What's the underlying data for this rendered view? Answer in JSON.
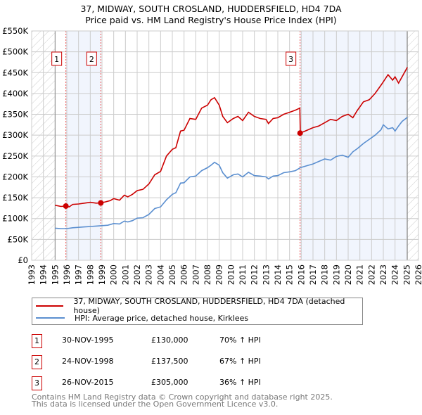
{
  "chart_data": {
    "type": "line",
    "title": "37, MIDWAY, SOUTH CROSLAND, HUDDERSFIELD, HD4 7DA",
    "subtitle": "Price paid vs. HM Land Registry's House Price Index (HPI)",
    "xlim": [
      1993,
      2026
    ],
    "ylim": [
      0,
      550000
    ],
    "y_ticks": [
      {
        "v": 0,
        "label": "£0"
      },
      {
        "v": 50000,
        "label": "£50K"
      },
      {
        "v": 100000,
        "label": "£100K"
      },
      {
        "v": 150000,
        "label": "£150K"
      },
      {
        "v": 200000,
        "label": "£200K"
      },
      {
        "v": 250000,
        "label": "£250K"
      },
      {
        "v": 300000,
        "label": "£300K"
      },
      {
        "v": 350000,
        "label": "£350K"
      },
      {
        "v": 400000,
        "label": "£400K"
      },
      {
        "v": 450000,
        "label": "£450K"
      },
      {
        "v": 500000,
        "label": "£500K"
      },
      {
        "v": 550000,
        "label": "£550K"
      }
    ],
    "x_ticks": [
      "1993",
      "1994",
      "1995",
      "1996",
      "1997",
      "1998",
      "1999",
      "2000",
      "2001",
      "2002",
      "2003",
      "2004",
      "2005",
      "2006",
      "2007",
      "2008",
      "2009",
      "2010",
      "2011",
      "2012",
      "2013",
      "2014",
      "2015",
      "2016",
      "2017",
      "2018",
      "2019",
      "2020",
      "2021",
      "2022",
      "2023",
      "2024",
      "2025",
      "2026"
    ],
    "grid": true,
    "data_range": [
      1995.0,
      2025.05
    ],
    "shaded_periods": [
      [
        1995.92,
        1998.9
      ],
      [
        2015.9,
        2025.05
      ]
    ],
    "series": [
      {
        "name": "37, MIDWAY, SOUTH CROSLAND, HUDDERSFIELD, HD4 7DA (detached house)",
        "color": "#cc0000",
        "x": [
          1995.0,
          1995.5,
          1995.92,
          1996.2,
          1996.5,
          1997,
          1997.5,
          1998,
          1998.5,
          1998.9,
          1999.3,
          1999.7,
          2000,
          2000.5,
          2000.9,
          2001.2,
          2001.6,
          2002,
          2002.5,
          2003,
          2003.5,
          2004,
          2004.5,
          2005,
          2005.3,
          2005.7,
          2006,
          2006.5,
          2007,
          2007.5,
          2008,
          2008.3,
          2008.6,
          2009,
          2009.3,
          2009.7,
          2010.2,
          2010.6,
          2011,
          2011.5,
          2012,
          2012.5,
          2013,
          2013.2,
          2013.6,
          2014,
          2014.5,
          2015,
          2015.5,
          2015.88,
          2015.92,
          2016.5,
          2017,
          2017.5,
          2018,
          2018.5,
          2019,
          2019.5,
          2020,
          2020.4,
          2020.8,
          2021.3,
          2021.8,
          2022.3,
          2022.8,
          2023,
          2023.4,
          2023.8,
          2024,
          2024.3,
          2024.6,
          2025.05
        ],
        "y": [
          132000,
          129000,
          130000,
          128000,
          134000,
          135000,
          137000,
          139000,
          137000,
          137500,
          140000,
          143000,
          148000,
          144000,
          156000,
          152000,
          158000,
          167000,
          170000,
          183000,
          205000,
          213000,
          250000,
          266000,
          270000,
          310000,
          312000,
          340000,
          338000,
          365000,
          372000,
          385000,
          390000,
          372000,
          345000,
          330000,
          340000,
          345000,
          335000,
          355000,
          345000,
          340000,
          338000,
          328000,
          340000,
          342000,
          350000,
          355000,
          360000,
          365000,
          305000,
          312000,
          318000,
          322000,
          330000,
          338000,
          335000,
          345000,
          350000,
          342000,
          360000,
          380000,
          385000,
          400000,
          420000,
          428000,
          445000,
          432000,
          440000,
          425000,
          440000,
          463000
        ]
      },
      {
        "name": "HPI: Average price, detached house, Kirklees",
        "color": "#5b8fd0",
        "x": [
          1995.0,
          1995.5,
          1996,
          1996.5,
          1997,
          1997.5,
          1998,
          1998.5,
          1999,
          1999.5,
          2000,
          2000.5,
          2000.9,
          2001.2,
          2001.6,
          2002,
          2002.5,
          2003,
          2003.5,
          2004,
          2004.5,
          2005,
          2005.3,
          2005.7,
          2006,
          2006.5,
          2007,
          2007.5,
          2008,
          2008.3,
          2008.6,
          2009,
          2009.3,
          2009.7,
          2010.2,
          2010.6,
          2011,
          2011.5,
          2012,
          2012.5,
          2013,
          2013.2,
          2013.6,
          2014,
          2014.5,
          2015,
          2015.5,
          2015.92,
          2016.5,
          2017,
          2017.5,
          2018,
          2018.5,
          2019,
          2019.5,
          2020,
          2020.4,
          2020.8,
          2021.3,
          2021.8,
          2022.3,
          2022.8,
          2023,
          2023.4,
          2023.8,
          2024,
          2024.3,
          2024.6,
          2025.05
        ],
        "y": [
          77000,
          76000,
          76000,
          78000,
          79000,
          80000,
          81000,
          82000,
          83000,
          84000,
          88000,
          87000,
          94000,
          92000,
          95000,
          101000,
          102000,
          110000,
          124000,
          128000,
          145000,
          158000,
          162000,
          185000,
          186000,
          200000,
          202000,
          215000,
          222000,
          228000,
          235000,
          228000,
          210000,
          197000,
          205000,
          207000,
          200000,
          211000,
          203000,
          202000,
          200000,
          195000,
          202000,
          203000,
          210000,
          212000,
          215000,
          222000,
          227000,
          231000,
          237000,
          243000,
          240000,
          249000,
          252000,
          247000,
          260000,
          268000,
          280000,
          290000,
          300000,
          313000,
          325000,
          315000,
          318000,
          310000,
          322000,
          333000,
          343000
        ]
      }
    ],
    "sales": [
      {
        "id": "1",
        "x": 1995.92,
        "y": 130000
      },
      {
        "id": "2",
        "x": 1998.9,
        "y": 137500
      },
      {
        "id": "3",
        "x": 2015.9,
        "y": 305000
      }
    ],
    "legend_placement": "bottom"
  },
  "legend": {
    "property": "37, MIDWAY, SOUTH CROSLAND, HUDDERSFIELD, HD4 7DA (detached house)",
    "hpi": "HPI: Average price, detached house, Kirklees"
  },
  "transactions": [
    {
      "id": "1",
      "date": "30-NOV-1995",
      "price": "£130,000",
      "delta": "70% ↑ HPI"
    },
    {
      "id": "2",
      "date": "24-NOV-1998",
      "price": "£137,500",
      "delta": "67% ↑ HPI"
    },
    {
      "id": "3",
      "date": "26-NOV-2015",
      "price": "£305,000",
      "delta": "36% ↑ HPI"
    }
  ],
  "footer": {
    "line1": "Contains HM Land Registry data © Crown copyright and database right 2025.",
    "line2": "This data is licensed under the Open Government Licence v3.0."
  }
}
